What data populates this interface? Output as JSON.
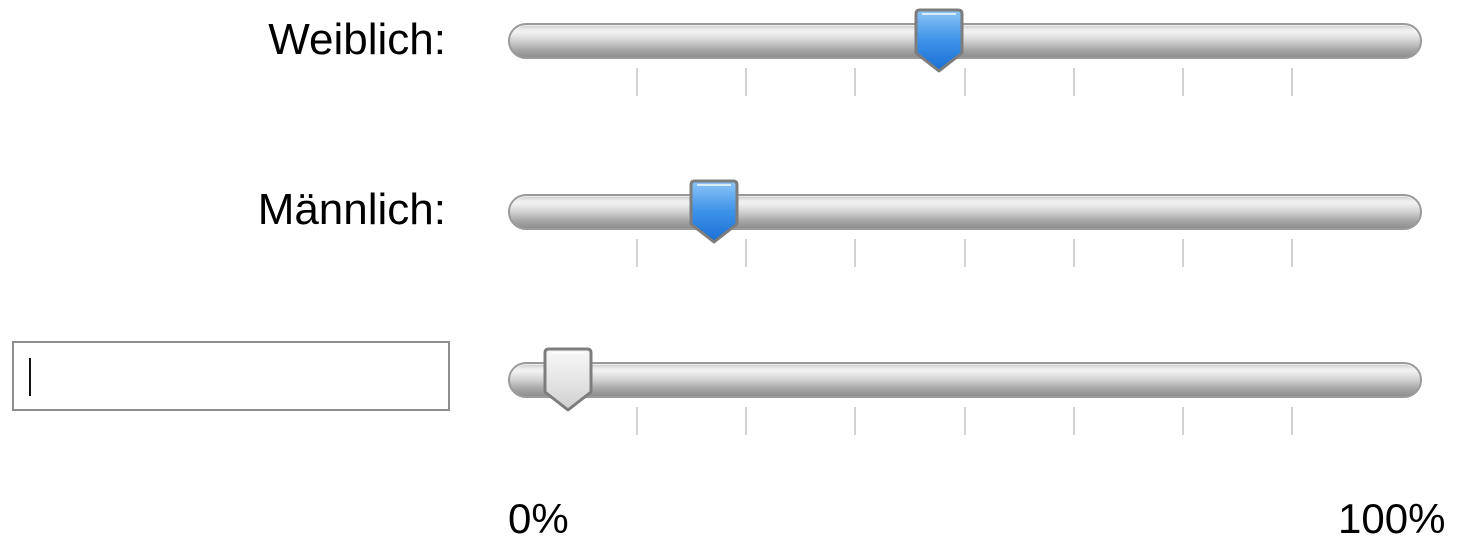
{
  "rows": [
    {
      "label": "Weiblich:",
      "value_percent": 47,
      "active": true
    },
    {
      "label": "Männlich:",
      "value_percent": 21,
      "active": true
    },
    {
      "label": "",
      "value_percent": 4,
      "active": false
    }
  ],
  "input": {
    "value": "",
    "placeholder": ""
  },
  "scale": {
    "min_label": "0%",
    "max_label": "100%"
  },
  "ticks_count": 7,
  "colors": {
    "knob_active_top": "#8ec6f7",
    "knob_active_bottom": "#1a6fd4",
    "knob_inactive_top": "#f8f8f8",
    "knob_inactive_bottom": "#cfcfcf",
    "track_border": "#9a9a9a",
    "tick": "#d2d2d2"
  },
  "icons": {
    "knob": "slider-thumb-icon"
  }
}
